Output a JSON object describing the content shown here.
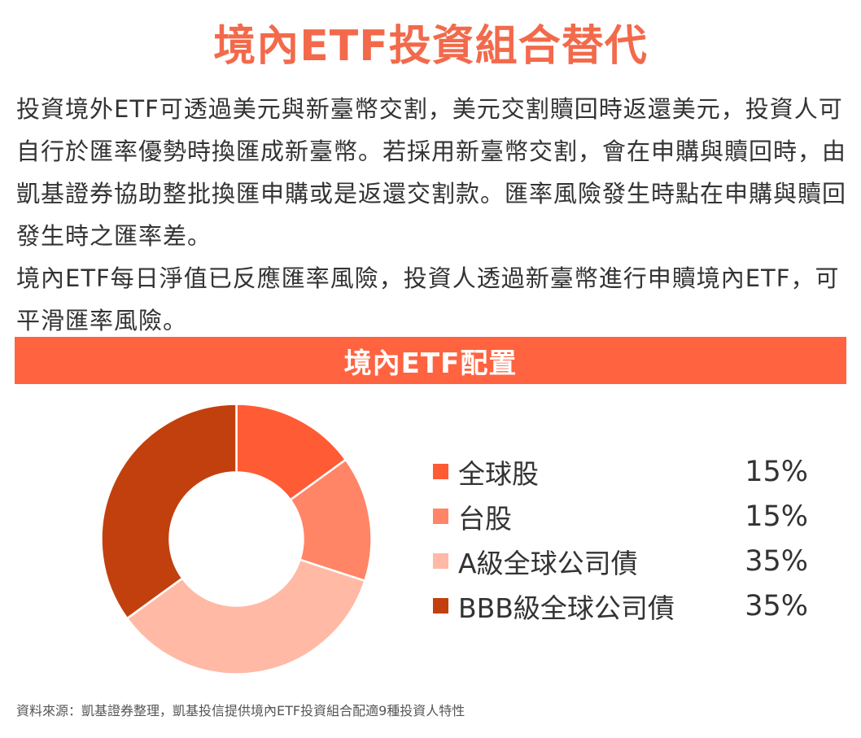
{
  "title": "境內ETF投資組合替代",
  "intro": {
    "paragraph1": "投資境外ETF可透過美元與新臺幣交割，美元交割贖回時返還美元，投資人可自行於匯率優勢時換匯成新臺幣。若採用新臺幣交割，會在申購與贖回時，由凱基證券協助整批換匯申購或是返還交割款。匯率風險發生時點在申購與贖回發生時之匯率差。",
    "paragraph2": "境內ETF每日淨值已反應匯率風險，投資人透過新臺幣進行申贖境內ETF，可平滑匯率風險。"
  },
  "banner": {
    "label": "境內ETF配置"
  },
  "colors": {
    "title": "#f26a4b",
    "banner": "#ff6340"
  },
  "chart_data": {
    "type": "pie",
    "style": "donut",
    "title": "境內ETF配置",
    "slices": [
      {
        "label": "全球股",
        "value": 15,
        "value_label": "15%",
        "color": "#ff5b35"
      },
      {
        "label": "台股",
        "value": 15,
        "value_label": "15%",
        "color": "#ff8566"
      },
      {
        "label": "A級全球公司債",
        "value": 35,
        "value_label": "35%",
        "color": "#ffb9a5"
      },
      {
        "label": "BBB級全球公司債",
        "value": 35,
        "value_label": "35%",
        "color": "#c2400e"
      }
    ],
    "legend_position": "right"
  },
  "source": "資料來源：凱基證券整理，凱基投信提供境內ETF投資組合配適9種投資人特性"
}
